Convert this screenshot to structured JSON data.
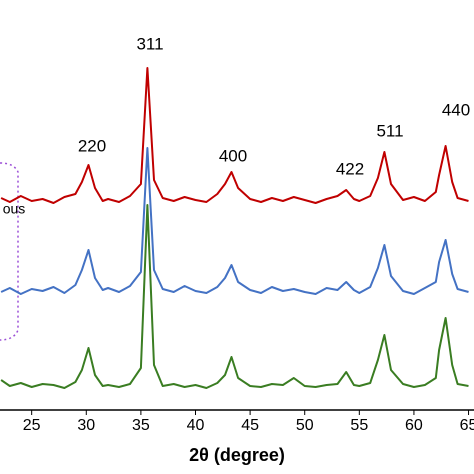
{
  "chart_data": {
    "type": "line",
    "x_label": "2θ (degree)",
    "xlim": [
      22.1,
      65.5
    ],
    "xticks": [
      25,
      30,
      35,
      40,
      45,
      50,
      55,
      60,
      65
    ],
    "ylim": [
      0,
      420
    ],
    "x": [
      22.2,
      23,
      24,
      25,
      26,
      27,
      28,
      29,
      29.6,
      30.2,
      30.8,
      31.5,
      32,
      33,
      34,
      35,
      35.6,
      36.2,
      37,
      38,
      39,
      40,
      41,
      42,
      42.7,
      43.3,
      43.9,
      45,
      46,
      47,
      48,
      49,
      50,
      51,
      52,
      53,
      53.8,
      54.5,
      55,
      56,
      56.7,
      57.3,
      57.9,
      59,
      60,
      61,
      62,
      62.3,
      62.9,
      63.5,
      64,
      65
    ],
    "series": [
      {
        "color": "#c00000",
        "values": [
          222,
          218,
          224,
          219,
          221,
          217,
          223,
          226,
          238,
          255,
          232,
          219,
          221,
          218,
          224,
          236,
          352,
          240,
          222,
          219,
          223,
          220,
          218,
          226,
          236,
          248,
          232,
          221,
          218,
          222,
          219,
          223,
          220,
          217,
          221,
          224,
          230,
          221,
          219,
          224,
          242,
          268,
          236,
          220,
          223,
          219,
          228,
          245,
          274,
          238,
          222,
          219
        ]
      },
      {
        "color": "#4472c4",
        "values": [
          128,
          132,
          126,
          131,
          129,
          133,
          127,
          135,
          150,
          170,
          142,
          130,
          132,
          128,
          134,
          148,
          272,
          150,
          131,
          128,
          134,
          129,
          127,
          133,
          142,
          155,
          138,
          130,
          127,
          133,
          129,
          131,
          128,
          126,
          132,
          130,
          138,
          130,
          127,
          133,
          152,
          175,
          144,
          129,
          126,
          132,
          138,
          158,
          180,
          146,
          131,
          128
        ]
      },
      {
        "color": "#3a7d22",
        "values": [
          40,
          34,
          37,
          33,
          36,
          35,
          32,
          38,
          50,
          72,
          45,
          34,
          35,
          33,
          36,
          52,
          215,
          55,
          34,
          36,
          33,
          35,
          32,
          37,
          45,
          63,
          42,
          34,
          33,
          36,
          35,
          42,
          34,
          33,
          35,
          36,
          48,
          35,
          34,
          37,
          60,
          85,
          50,
          36,
          33,
          35,
          42,
          70,
          102,
          55,
          36,
          34
        ]
      }
    ],
    "annotations": [
      "220",
      "311",
      "400",
      "422",
      "511",
      "440",
      "ous"
    ]
  }
}
